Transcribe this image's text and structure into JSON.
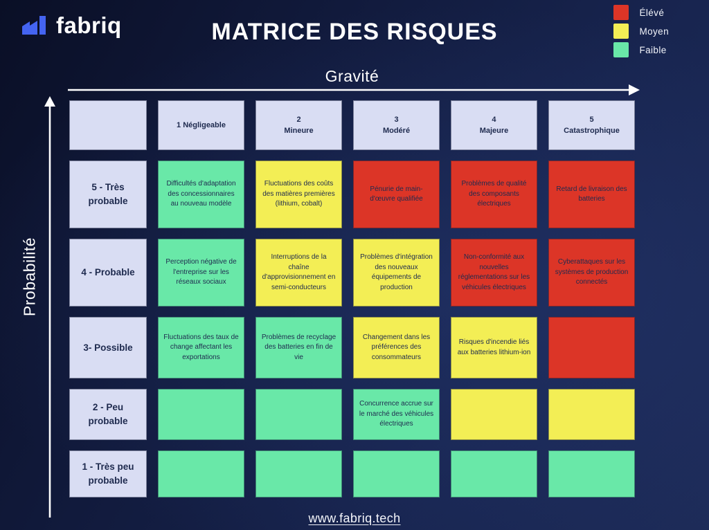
{
  "brand": {
    "name": "fabriq"
  },
  "header": {
    "title": "MATRICE DES RISQUES"
  },
  "legend": [
    {
      "label": "Élévé",
      "level": "high"
    },
    {
      "label": "Moyen",
      "level": "medium"
    },
    {
      "label": "Faible",
      "level": "low"
    }
  ],
  "colors": {
    "high": "#dc3527",
    "medium": "#f3ee55",
    "low": "#69e8a8",
    "header_cell": "#d9ddf3",
    "accent_blue": "#4464f1",
    "background": "#141e3e"
  },
  "axes": {
    "x_label": "Gravité",
    "y_label": "Probabilité"
  },
  "matrix": {
    "column_headers": [
      "",
      "1 Négligeable",
      "2\nMineure",
      "3\nModéré",
      "4\nMajeure",
      "5\nCatastrophique"
    ],
    "rows": [
      {
        "header": "5 - Très probable",
        "cells": [
          {
            "level": "low",
            "text": "Difficultés d'adaptation des concessionnaires au nouveau modèle"
          },
          {
            "level": "medium",
            "text": "Fluctuations des coûts des matières premières (lithium, cobalt)"
          },
          {
            "level": "high",
            "text": "Pénurie de main-d'œuvre qualifiée"
          },
          {
            "level": "high",
            "text": "Problèmes de qualité des composants électriques"
          },
          {
            "level": "high",
            "text": "Retard de livraison des batteries"
          }
        ]
      },
      {
        "header": "4 - Probable",
        "cells": [
          {
            "level": "low",
            "text": "Perception négative de l'entreprise sur les réseaux sociaux"
          },
          {
            "level": "medium",
            "text": "Interruptions de la chaîne d'approvisionnement en semi-conducteurs"
          },
          {
            "level": "medium",
            "text": "Problèmes d'intégration des nouveaux équipements de production"
          },
          {
            "level": "high",
            "text": "Non-conformité aux nouvelles réglementations sur les véhicules électriques"
          },
          {
            "level": "high",
            "text": "Cyberattaques sur les systèmes de production connectés"
          }
        ]
      },
      {
        "header": "3- Possible",
        "cells": [
          {
            "level": "low",
            "text": "Fluctuations des taux de change affectant les exportations"
          },
          {
            "level": "low",
            "text": "Problèmes de recyclage des batteries en fin de vie"
          },
          {
            "level": "medium",
            "text": "Changement dans les préférences des consommateurs"
          },
          {
            "level": "medium",
            "text": "Risques d'incendie liés aux batteries lithium-ion"
          },
          {
            "level": "high",
            "text": ""
          }
        ]
      },
      {
        "header": "2 - Peu probable",
        "cells": [
          {
            "level": "low",
            "text": ""
          },
          {
            "level": "low",
            "text": ""
          },
          {
            "level": "low",
            "text": "Concurrence accrue sur le marché des véhicules électriques"
          },
          {
            "level": "medium",
            "text": ""
          },
          {
            "level": "medium",
            "text": ""
          }
        ]
      },
      {
        "header": "1 - Très peu probable",
        "cells": [
          {
            "level": "low",
            "text": ""
          },
          {
            "level": "low",
            "text": ""
          },
          {
            "level": "low",
            "text": ""
          },
          {
            "level": "low",
            "text": ""
          },
          {
            "level": "low",
            "text": ""
          }
        ]
      }
    ]
  },
  "footer": {
    "link": "www.fabriq.tech"
  }
}
